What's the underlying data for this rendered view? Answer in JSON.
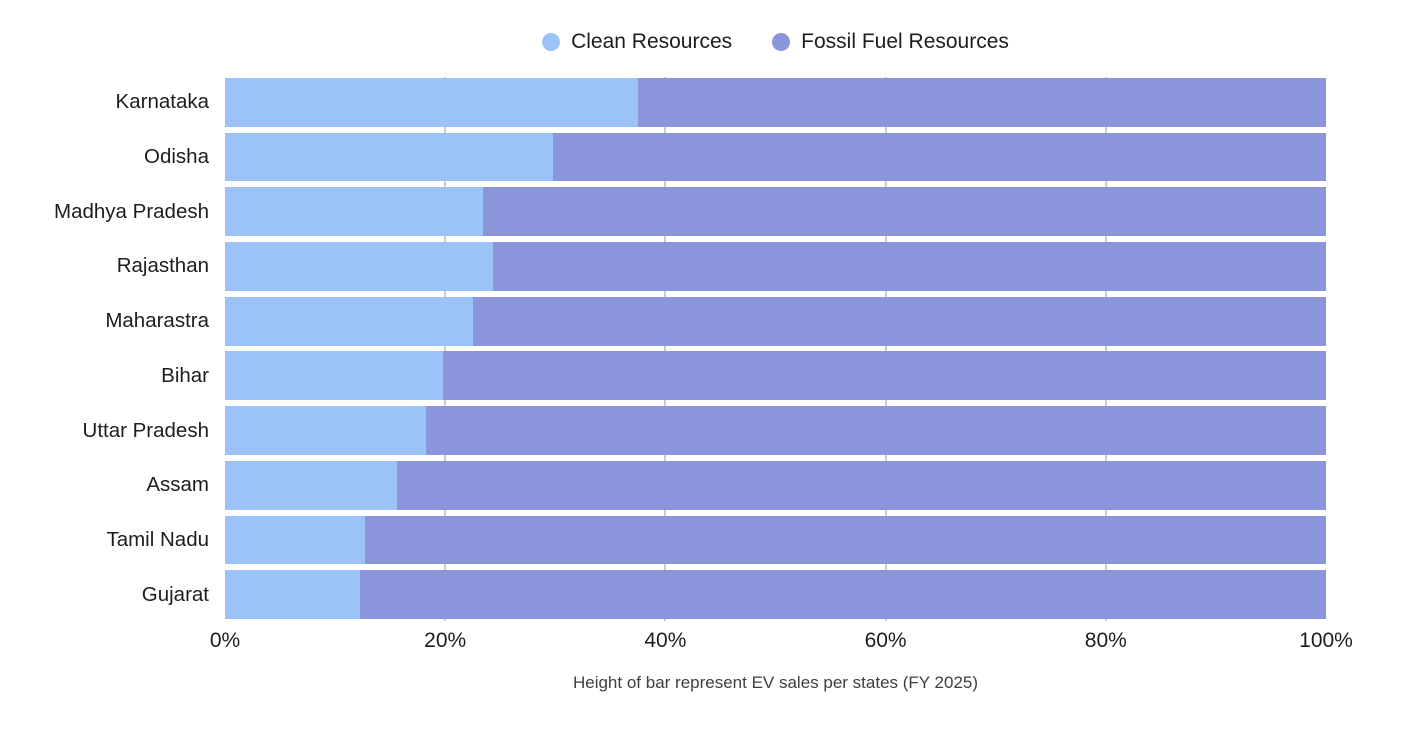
{
  "chart_data": {
    "type": "bar",
    "orientation": "horizontal",
    "stacked": true,
    "unit": "%",
    "title": "",
    "caption": "Height of bar represent EV sales per states (FY 2025)",
    "legend_position": "top",
    "grid": true,
    "xlim": [
      0,
      100
    ],
    "x_ticks": [
      "0%",
      "20%",
      "40%",
      "60%",
      "80%",
      "100%"
    ],
    "x_tick_values": [
      0,
      20,
      40,
      60,
      80,
      100
    ],
    "categories": [
      "Karnataka",
      "Odisha",
      "Madhya Pradesh",
      "Rajasthan",
      "Maharastra",
      "Bihar",
      "Uttar Pradesh",
      "Assam",
      "Tamil Nadu",
      "Gujarat"
    ],
    "series": [
      {
        "name": "Clean Resources",
        "color": "#9cc3f8",
        "values": [
          37.5,
          29.8,
          23.4,
          24.3,
          22.5,
          19.8,
          18.3,
          15.6,
          12.7,
          12.3
        ]
      },
      {
        "name": "Fossil Fuel Resources",
        "color": "#8b95dc",
        "values": [
          62.5,
          70.2,
          76.6,
          75.7,
          77.5,
          80.2,
          81.7,
          84.4,
          87.3,
          87.7
        ]
      }
    ],
    "colors": {
      "background": "#ffffff",
      "gridline": "#cbcbd0",
      "axis_text": "#1d1d1d",
      "caption_text": "#3f3f3f"
    }
  }
}
